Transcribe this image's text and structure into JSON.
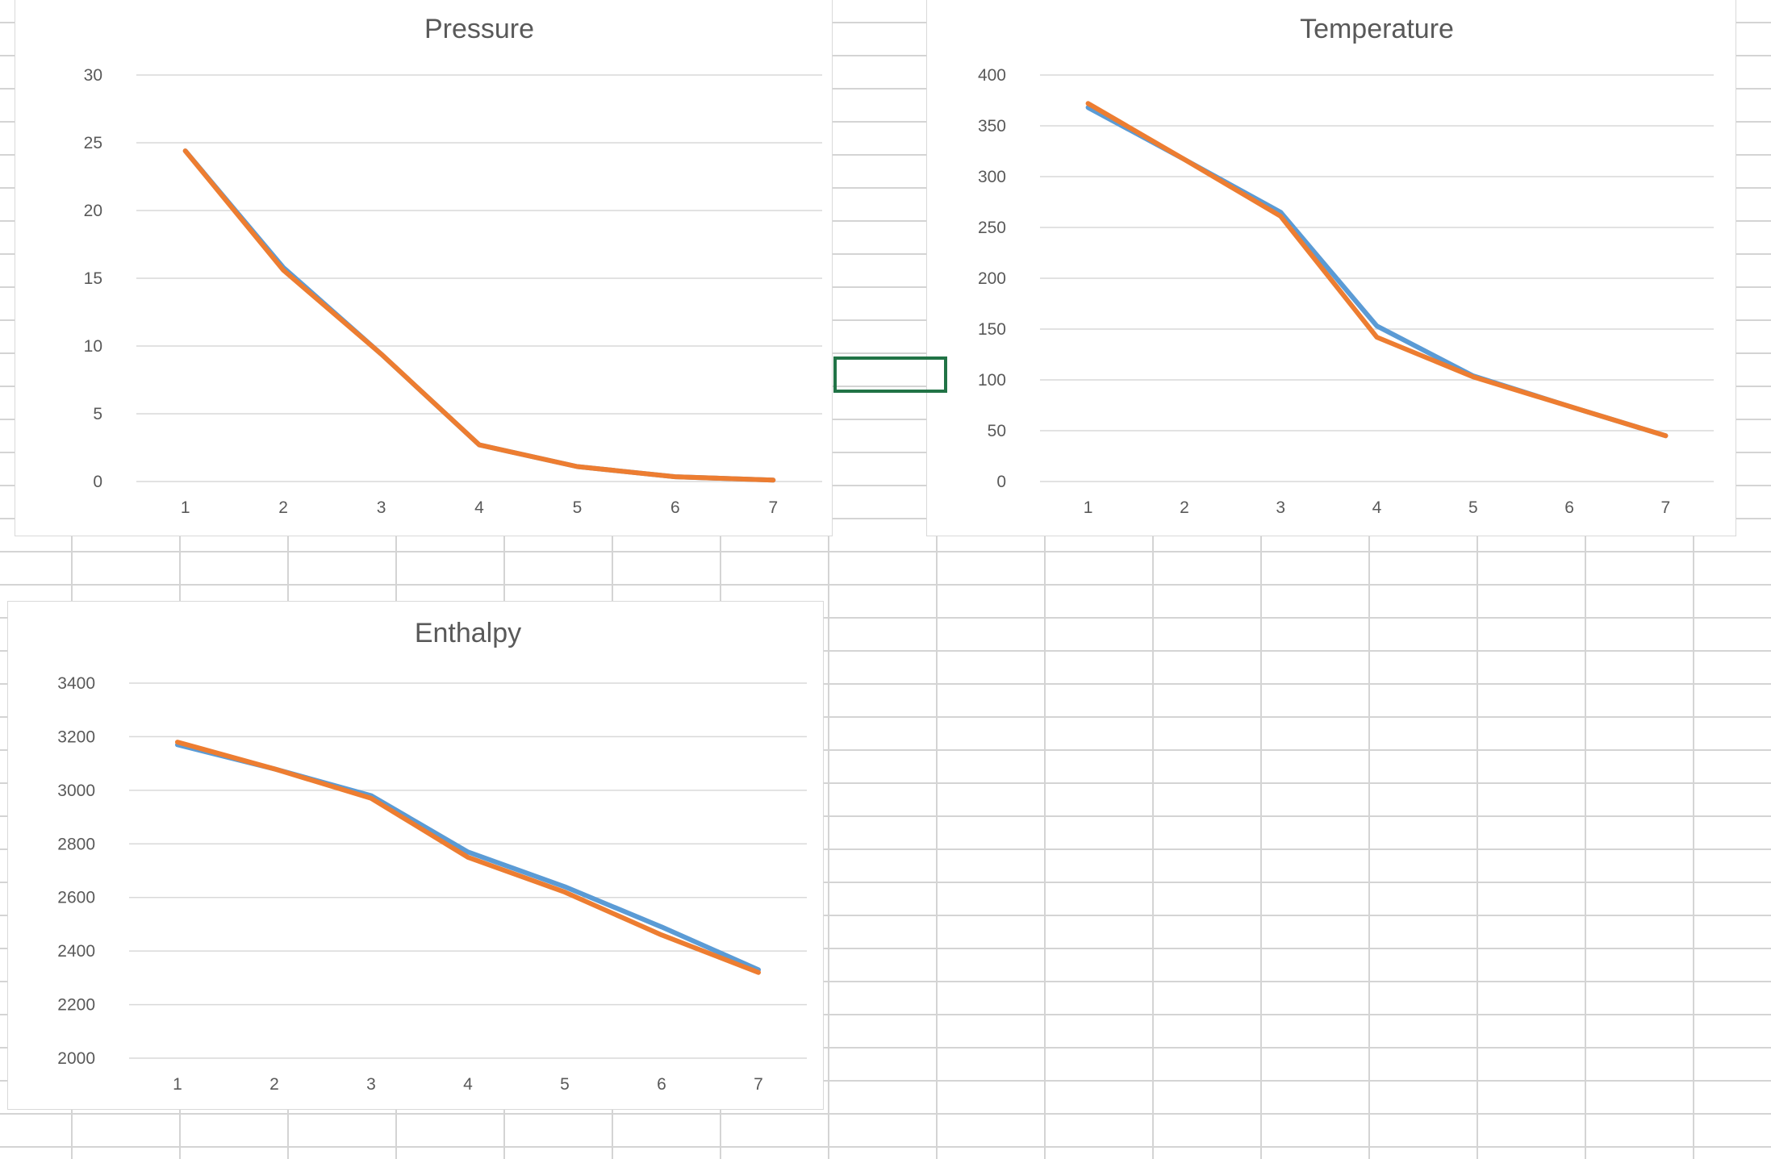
{
  "colors": {
    "series_blue": "#5b9bd5",
    "series_orange": "#ed7d31",
    "gridline": "#d9d9d9",
    "text": "#595959",
    "selection": "#217346",
    "sheet_grid": "#d4d4d4"
  },
  "chart_data": [
    {
      "id": "pressure",
      "type": "line",
      "title": "Pressure",
      "xlabel": "",
      "ylabel": "",
      "categories": [
        "1",
        "2",
        "3",
        "4",
        "5",
        "6",
        "7"
      ],
      "ylim": [
        0,
        30
      ],
      "yticks": [
        0,
        5,
        10,
        15,
        20,
        25,
        30
      ],
      "grid": true,
      "legend": "none",
      "series": [
        {
          "color": "#5b9bd5",
          "values": [
            24.4,
            15.8,
            9.4,
            2.7,
            1.1,
            0.35,
            0.1
          ]
        },
        {
          "color": "#ed7d31",
          "values": [
            24.4,
            15.6,
            9.4,
            2.7,
            1.1,
            0.35,
            0.1
          ]
        }
      ]
    },
    {
      "id": "temperature",
      "type": "line",
      "title": "Temperature",
      "xlabel": "",
      "ylabel": "",
      "categories": [
        "1",
        "2",
        "3",
        "4",
        "5",
        "6",
        "7"
      ],
      "ylim": [
        0,
        400
      ],
      "yticks": [
        0,
        50,
        100,
        150,
        200,
        250,
        300,
        350,
        400
      ],
      "grid": true,
      "legend": "none",
      "series": [
        {
          "color": "#5b9bd5",
          "values": [
            368,
            317,
            265,
            153,
            104,
            74,
            45
          ]
        },
        {
          "color": "#ed7d31",
          "values": [
            372,
            317,
            261,
            142,
            103,
            74,
            45
          ]
        }
      ]
    },
    {
      "id": "enthalpy",
      "type": "line",
      "title": "Enthalpy",
      "xlabel": "",
      "ylabel": "",
      "categories": [
        "1",
        "2",
        "3",
        "4",
        "5",
        "6",
        "7"
      ],
      "ylim": [
        2000,
        3400
      ],
      "yticks": [
        2000,
        2200,
        2400,
        2600,
        2800,
        3000,
        3200,
        3400
      ],
      "grid": true,
      "legend": "none",
      "series": [
        {
          "color": "#5b9bd5",
          "values": [
            3170,
            3080,
            2980,
            2770,
            2640,
            2490,
            2330
          ]
        },
        {
          "color": "#ed7d31",
          "values": [
            3180,
            3080,
            2970,
            2750,
            2620,
            2460,
            2320
          ]
        }
      ]
    }
  ]
}
